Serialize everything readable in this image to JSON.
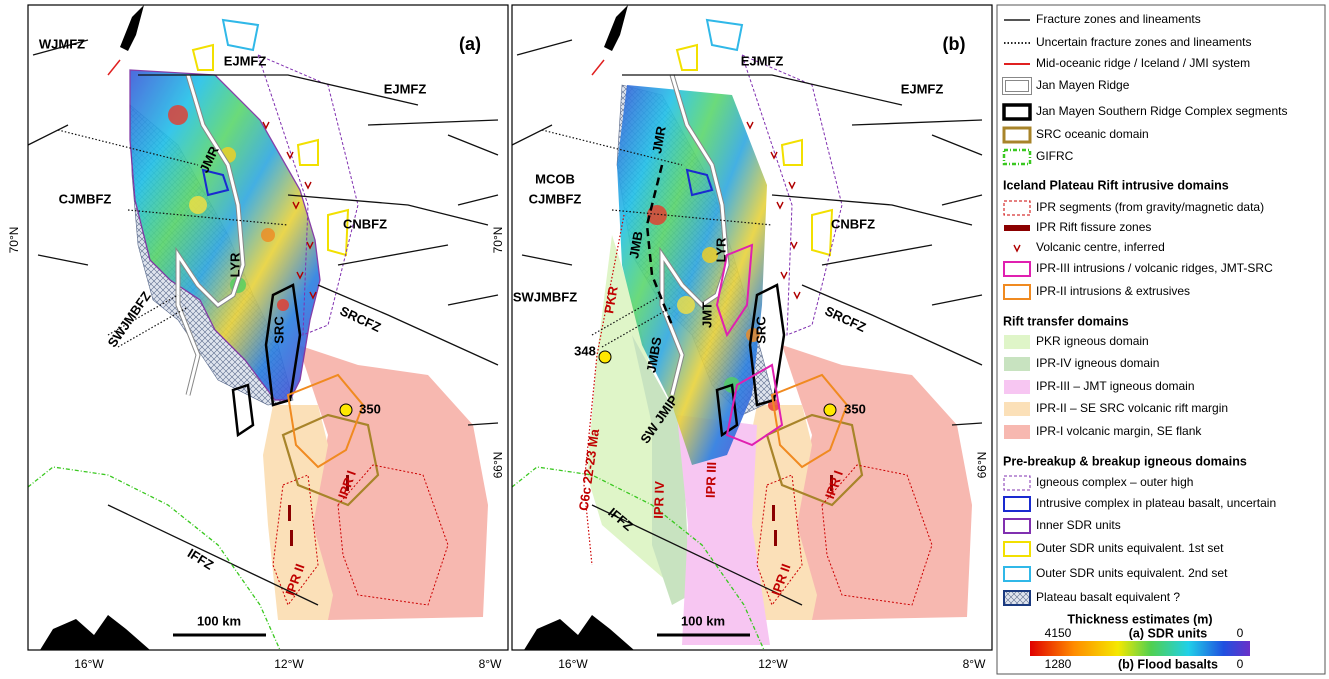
{
  "panels": [
    {
      "label": "(a)",
      "features": [
        "WJMFZ",
        "EJMFZ",
        "EJMFZ",
        "JMR",
        "CJMBFZ",
        "LYR",
        "CNBFZ",
        "SWJMBFZ",
        "SRC",
        "SRCFZ",
        "350",
        "IPR I",
        "IPR II",
        "IFFZ"
      ],
      "lat_labels": [
        "70°N",
        "66°N"
      ],
      "lon_labels": [
        "16°W",
        "12°W",
        "8°W"
      ],
      "scale": "100 km"
    },
    {
      "label": "(b)",
      "features": [
        "EJMFZ",
        "EJMFZ",
        "JMR",
        "MCOB",
        "CJMBFZ",
        "JMB",
        "LYR",
        "CNBFZ",
        "SWJMBFZ",
        "PKR",
        "JMT",
        "SRC",
        "SRCFZ",
        "348",
        "JMBS",
        "SW JMIP",
        "350",
        "C6c 22-23 Ma",
        "IPR IV",
        "IPR III",
        "IPR I",
        "IPR II",
        "IFFZ"
      ],
      "lat_labels": [
        "70°N",
        "66°N"
      ],
      "lon_labels": [
        "16°W",
        "12°W",
        "8°W"
      ],
      "scale": "100 km"
    }
  ],
  "legend": {
    "headings": [
      "Iceland Plateau Rift intrusive domains",
      "Rift transfer domains",
      "Pre-breakup & breakup igneous domains"
    ],
    "entries": [
      "Fracture zones and lineaments",
      "Uncertain fracture zones and lineaments",
      "Mid-oceanic ridge / Iceland / JMI system",
      "Jan Mayen Ridge",
      "Jan Mayen Southern Ridge Complex segments",
      "SRC oceanic domain",
      "GIFRC",
      "IPR segments (from gravity/magnetic data)",
      "IPR Rift fissure zones",
      "Volcanic centre, inferred",
      "IPR-III intrusions / volcanic ridges, JMT-SRC",
      "IPR-II intrusions & extrusives",
      "PKR igneous domain",
      "IPR-IV igneous domain",
      "IPR-III – JMT igneous domain",
      "IPR-II – SE SRC volcanic rift margin",
      "IPR-I volcanic margin, SE flank",
      "Igneous complex – outer high",
      "Intrusive complex in plateau basalt, uncertain",
      "Inner SDR units",
      "Outer SDR units equivalent. 1st set",
      "Outer SDR units equivalent. 2nd set",
      "Plateau basalt equivalent ?"
    ]
  },
  "colorbar": {
    "title": "Thickness estimates (m)",
    "rows": [
      {
        "max": 4150,
        "name": "(a) SDR units",
        "min": 0
      },
      {
        "max": 1280,
        "name": "(b) Flood basalts",
        "min": 0
      }
    ]
  }
}
